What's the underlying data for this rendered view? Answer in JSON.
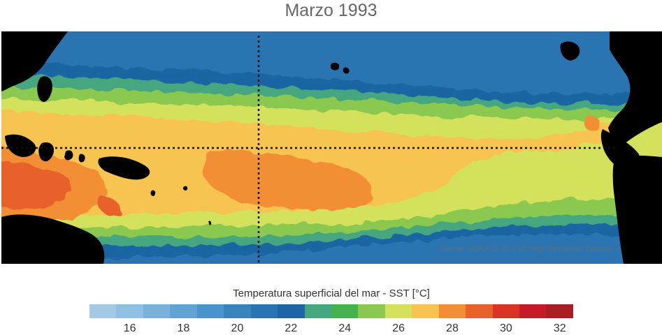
{
  "title": "Marzo 1993",
  "source": "Fuente: NOAA OI SST V2 High Resolution Dataset",
  "colorbar": {
    "title": "Temperatura superficial del mar - SST  [°C]",
    "min": 15,
    "max": 33,
    "colors": [
      "#a3c9e6",
      "#8fbfe2",
      "#79b1db",
      "#62a3d3",
      "#4b93c8",
      "#3a84be",
      "#2b74b1",
      "#1f65a3",
      "#45a67f",
      "#43b14e",
      "#8ac84f",
      "#d4e15d",
      "#f7c451",
      "#f28f36",
      "#e8602c",
      "#d83325",
      "#c6192a",
      "#a91e23"
    ],
    "ticks": [
      "16",
      "18",
      "20",
      "22",
      "24",
      "26",
      "28",
      "30",
      "32"
    ]
  },
  "map": {
    "bands": [
      {
        "color": "#1f65a3",
        "temp": "22"
      },
      {
        "color": "#45a67f",
        "temp": "24"
      },
      {
        "color": "#8ac84f",
        "temp": "25"
      },
      {
        "color": "#d4e15d",
        "temp": "26"
      },
      {
        "color": "#f7c451",
        "temp": "27"
      },
      {
        "color": "#f28f36",
        "temp": "29"
      },
      {
        "color": "#e8602c",
        "temp": "30"
      }
    ],
    "land_color": "#000000",
    "grid_line_color": "#111111"
  }
}
